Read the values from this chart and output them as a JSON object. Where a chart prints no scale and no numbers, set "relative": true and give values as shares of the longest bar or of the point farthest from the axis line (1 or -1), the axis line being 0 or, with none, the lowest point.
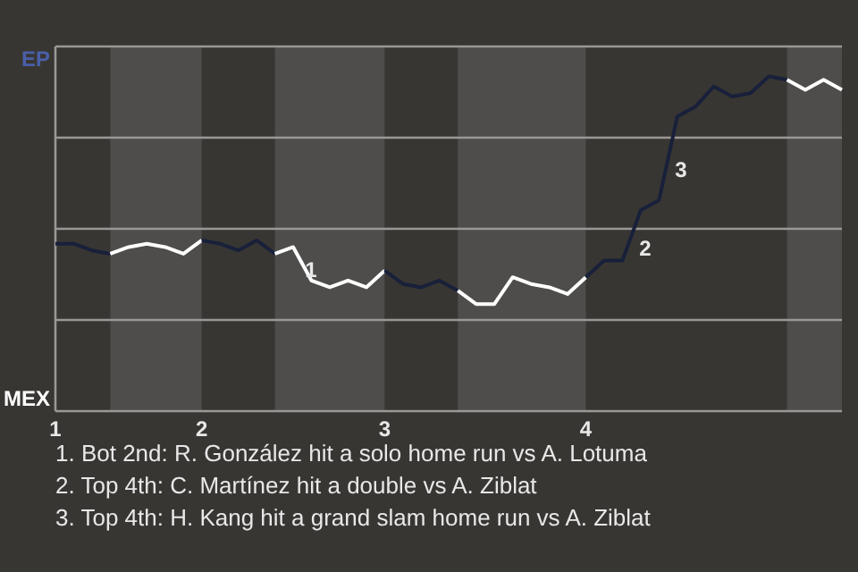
{
  "chart_data": {
    "type": "line",
    "relative": true,
    "categories": [
      "1",
      null,
      null,
      null,
      null,
      null,
      null,
      null,
      "2",
      null,
      null,
      null,
      null,
      null,
      null,
      null,
      null,
      null,
      "3",
      null,
      null,
      null,
      null,
      null,
      null,
      null,
      null,
      null,
      null,
      "4",
      null,
      null,
      null,
      null,
      null,
      null,
      null,
      null,
      null,
      null,
      null,
      null,
      null,
      null
    ],
    "grid": "y",
    "marker": "none",
    "line_style": "solid",
    "series": [
      {
        "color": "#18203a",
        "values": [
          0.5,
          0.5,
          0.48,
          0.47,
          null,
          null,
          null,
          null,
          null,
          null,
          null,
          null,
          null,
          null,
          null,
          null,
          null,
          null,
          null,
          null,
          null,
          null,
          null,
          null,
          null,
          null,
          null,
          null,
          null,
          null,
          null,
          null,
          null,
          null,
          null,
          null,
          null,
          null,
          null,
          null,
          null,
          null,
          null,
          null
        ]
      },
      {
        "color": "#ffffff",
        "values": [
          null,
          null,
          null,
          0.47,
          0.49,
          0.5,
          0.49,
          0.47,
          0.51,
          null,
          null,
          null,
          null,
          null,
          null,
          null,
          null,
          null,
          null,
          null,
          null,
          null,
          null,
          null,
          null,
          null,
          null,
          null,
          null,
          null,
          null,
          null,
          null,
          null,
          null,
          null,
          null,
          null,
          null,
          null,
          null,
          null,
          null,
          null
        ]
      },
      {
        "color": "#18203a",
        "values": [
          null,
          null,
          null,
          null,
          null,
          null,
          null,
          null,
          0.51,
          0.5,
          0.48,
          0.51,
          0.47,
          null,
          null,
          null,
          null,
          null,
          null,
          null,
          null,
          null,
          null,
          null,
          null,
          null,
          null,
          null,
          null,
          null,
          null,
          null,
          null,
          null,
          null,
          null,
          null,
          null,
          null,
          null,
          null,
          null,
          null,
          null
        ]
      },
      {
        "color": "#ffffff",
        "values": [
          null,
          null,
          null,
          null,
          null,
          null,
          null,
          null,
          null,
          null,
          null,
          null,
          0.47,
          0.49,
          0.39,
          0.37,
          0.39,
          0.37,
          0.42,
          null,
          null,
          null,
          null,
          null,
          null,
          null,
          null,
          null,
          null,
          null,
          null,
          null,
          null,
          null,
          null,
          null,
          null,
          null,
          null,
          null,
          null,
          null,
          null,
          null
        ]
      },
      {
        "color": "#18203a",
        "values": [
          null,
          null,
          null,
          null,
          null,
          null,
          null,
          null,
          null,
          null,
          null,
          null,
          null,
          null,
          null,
          null,
          null,
          null,
          0.42,
          0.38,
          0.37,
          0.39,
          0.36,
          null,
          null,
          null,
          null,
          null,
          null,
          null,
          null,
          null,
          null,
          null,
          null,
          null,
          null,
          null,
          null,
          null,
          null,
          null,
          null,
          null
        ]
      },
      {
        "color": "#ffffff",
        "values": [
          null,
          null,
          null,
          null,
          null,
          null,
          null,
          null,
          null,
          null,
          null,
          null,
          null,
          null,
          null,
          null,
          null,
          null,
          null,
          null,
          null,
          null,
          0.36,
          0.32,
          0.32,
          0.4,
          0.38,
          0.37,
          0.35,
          0.4,
          null,
          null,
          null,
          null,
          null,
          null,
          null,
          null,
          null,
          null,
          null,
          null,
          null,
          null
        ]
      },
      {
        "color": "#18203a",
        "values": [
          null,
          null,
          null,
          null,
          null,
          null,
          null,
          null,
          null,
          null,
          null,
          null,
          null,
          null,
          null,
          null,
          null,
          null,
          null,
          null,
          null,
          null,
          null,
          null,
          null,
          null,
          null,
          null,
          null,
          0.4,
          0.45,
          0.45,
          0.6,
          0.63,
          0.88,
          0.91,
          0.97,
          0.94,
          0.95,
          1,
          0.99,
          null,
          null,
          null
        ]
      },
      {
        "color": "#ffffff",
        "values": [
          null,
          null,
          null,
          null,
          null,
          null,
          null,
          null,
          null,
          null,
          null,
          null,
          null,
          null,
          null,
          null,
          null,
          null,
          null,
          null,
          null,
          null,
          null,
          null,
          null,
          null,
          null,
          null,
          null,
          null,
          null,
          null,
          null,
          null,
          null,
          null,
          null,
          null,
          null,
          null,
          0.99,
          0.96,
          0.99,
          0.96
        ]
      }
    ],
    "annotations": [
      "EP",
      "MEX",
      "1",
      "2",
      "3",
      "1. Bot 2nd: R. González hit a solo home run vs A. Lotuma",
      "2. Top 4th: C. Martínez hit a double vs A. Ziblat",
      "3. Top 4th: H. Kang hit a grand slam home run vs A. Ziblat"
    ]
  }
}
